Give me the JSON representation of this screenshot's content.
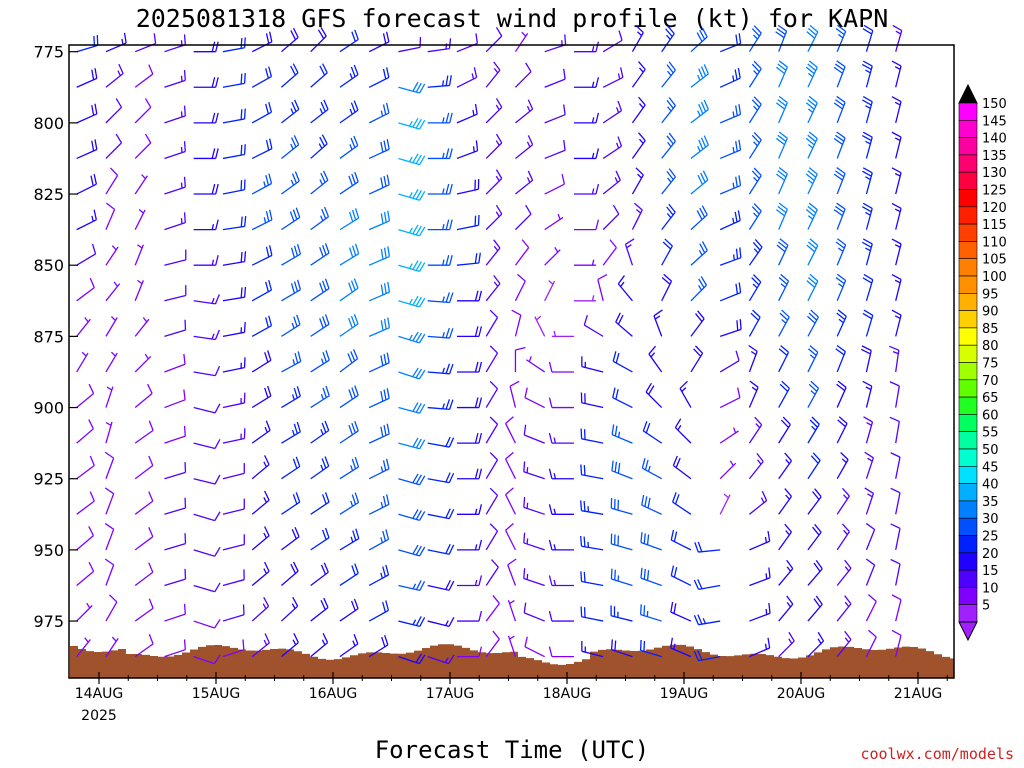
{
  "chart_data": {
    "type": "wind_barbs",
    "title": "2025081318 GFS forecast wind profile (kt) for KAPN",
    "xlabel": "Forecast Time (UTC)",
    "ylabel": "",
    "y_ticks": [
      "775",
      "800",
      "825",
      "850",
      "875",
      "900",
      "925",
      "950",
      "975"
    ],
    "y_tick_values": [
      775,
      800,
      825,
      850,
      875,
      900,
      925,
      950,
      975
    ],
    "ylim": [
      773,
      995
    ],
    "x_ticks": [
      "14AUG",
      "15AUG",
      "16AUG",
      "17AUG",
      "18AUG",
      "19AUG",
      "20AUG",
      "21AUG"
    ],
    "x_start_label": "2025",
    "colorbar_labels": [
      "150",
      "145",
      "140",
      "135",
      "130",
      "125",
      "120",
      "115",
      "110",
      "105",
      "100",
      "95",
      "90",
      "85",
      "80",
      "75",
      "70",
      "65",
      "60",
      "55",
      "50",
      "45",
      "40",
      "35",
      "30",
      "25",
      "20",
      "15",
      "10",
      "5"
    ],
    "colorbar_colors": [
      "#ff00ff",
      "#ff00d0",
      "#ff00a0",
      "#ff0070",
      "#ff0040",
      "#ff0000",
      "#ff2000",
      "#ff4000",
      "#ff6000",
      "#ff8000",
      "#ff9000",
      "#ffb000",
      "#ffd000",
      "#ffff00",
      "#d8ff00",
      "#a0ff00",
      "#60ff00",
      "#20ff20",
      "#00ff60",
      "#00ffa0",
      "#00ffd0",
      "#00e0ff",
      "#00b0ff",
      "#0080ff",
      "#0050ff",
      "#0020ff",
      "#2000ff",
      "#5000ff",
      "#8000ff",
      "#a020ff"
    ],
    "levels_hpa": [
      775,
      787.5,
      800,
      812.5,
      825,
      837.5,
      850,
      862.5,
      875,
      887.5,
      900,
      912.5,
      925,
      937.5,
      950,
      962.5,
      975,
      987.5
    ],
    "profiles": [
      {
        "time": "13/18Z",
        "u": [
          -20,
          -18,
          -18,
          -18,
          -16,
          -14,
          -10,
          -8,
          -4,
          -3,
          -6,
          -7,
          -8,
          -8,
          -7,
          -6,
          -5,
          -4
        ],
        "v": [
          -6,
          -8,
          -8,
          -8,
          -8,
          -7,
          -6,
          -6,
          -5,
          -5,
          -5,
          -6,
          -6,
          -6,
          -6,
          -5,
          -5,
          -5
        ]
      },
      {
        "time": "14/00Z",
        "u": [
          -14,
          -10,
          -8,
          -8,
          -5,
          -3,
          -4,
          -4,
          -3,
          -3,
          -2,
          -2,
          -3,
          -3,
          -3,
          -3,
          -4,
          -4
        ],
        "v": [
          -6,
          -8,
          -8,
          -8,
          -8,
          -7,
          -6,
          -5,
          -5,
          -5,
          -6,
          -7,
          -8,
          -8,
          -8,
          -8,
          -7,
          -6
        ]
      },
      {
        "time": "14/06Z",
        "u": [
          -10,
          -8,
          -6,
          -6,
          -4,
          -3,
          -2,
          -2,
          -4,
          -5,
          -6,
          -7,
          -8,
          -8,
          -8,
          -8,
          -7,
          -7
        ],
        "v": [
          -4,
          -6,
          -6,
          -6,
          -6,
          -6,
          -5,
          -5,
          -5,
          -5,
          -5,
          -5,
          -6,
          -6,
          -6,
          -6,
          -5,
          -5
        ]
      },
      {
        "time": "14/12Z",
        "u": [
          -12,
          -12,
          -12,
          -12,
          -12,
          -12,
          -12,
          -12,
          -10,
          -8,
          -8,
          -9,
          -10,
          -10,
          -10,
          -10,
          -9,
          -9
        ],
        "v": [
          -4,
          -4,
          -4,
          -4,
          -4,
          -4,
          -3,
          -3,
          -3,
          -3,
          -3,
          -3,
          -3,
          -3,
          -3,
          -3,
          -3,
          -3
        ]
      },
      {
        "time": "14/18Z",
        "u": [
          -20,
          -20,
          -20,
          -20,
          -18,
          -16,
          -14,
          -14,
          -14,
          -12,
          -12,
          -12,
          -12,
          -10,
          -10,
          -10,
          -9,
          -9
        ],
        "v": [
          0,
          0,
          0,
          0,
          0,
          0,
          0,
          2,
          2,
          2,
          3,
          3,
          3,
          3,
          3,
          3,
          3,
          3
        ]
      },
      {
        "time": "15/00Z",
        "u": [
          -22,
          -22,
          -22,
          -22,
          -20,
          -20,
          -18,
          -18,
          -16,
          -15,
          -14,
          -14,
          -12,
          -12,
          -12,
          -11,
          -10,
          -9
        ],
        "v": [
          -4,
          -4,
          -4,
          -4,
          -4,
          -3,
          -3,
          -3,
          -3,
          -3,
          -3,
          -3,
          -3,
          -3,
          -3,
          -3,
          -3,
          -3
        ]
      },
      {
        "time": "15/06Z",
        "u": [
          -16,
          -18,
          -18,
          -20,
          -22,
          -24,
          -20,
          -18,
          -18,
          -16,
          -16,
          -14,
          -12,
          -12,
          -12,
          -12,
          -10,
          -10
        ],
        "v": [
          -8,
          -10,
          -10,
          -10,
          -12,
          -12,
          -10,
          -10,
          -10,
          -10,
          -10,
          -10,
          -10,
          -10,
          -10,
          -10,
          -9,
          -8
        ]
      },
      {
        "time": "15/12Z",
        "u": [
          -14,
          -16,
          -18,
          -20,
          -22,
          -24,
          -24,
          -24,
          -22,
          -22,
          -20,
          -20,
          -18,
          -18,
          -16,
          -14,
          -12,
          -12
        ],
        "v": [
          -12,
          -14,
          -14,
          -16,
          -16,
          -16,
          -14,
          -14,
          -14,
          -12,
          -12,
          -12,
          -12,
          -12,
          -12,
          -12,
          -11,
          -10
        ]
      },
      {
        "time": "15/18Z",
        "u": [
          -14,
          -16,
          -18,
          -18,
          -20,
          -22,
          -24,
          -24,
          -24,
          -22,
          -22,
          -20,
          -20,
          -18,
          -18,
          -16,
          -14,
          -12
        ],
        "v": [
          -14,
          -14,
          -14,
          -16,
          -16,
          -16,
          -16,
          -16,
          -16,
          -14,
          -14,
          -14,
          -14,
          -12,
          -12,
          -12,
          -11,
          -10
        ]
      },
      {
        "time": "16/00Z",
        "u": [
          -18,
          -20,
          -20,
          -22,
          -24,
          -26,
          -26,
          -26,
          -26,
          -24,
          -24,
          -24,
          -22,
          -22,
          -20,
          -18,
          -16,
          -14
        ],
        "v": [
          -12,
          -14,
          -14,
          -16,
          -16,
          -16,
          -16,
          -18,
          -18,
          -18,
          -16,
          -16,
          -14,
          -14,
          -12,
          -12,
          -11,
          -10
        ]
      },
      {
        "time": "16/06Z",
        "u": [
          -16,
          -20,
          -24,
          -26,
          -26,
          -28,
          -28,
          -28,
          -28,
          -26,
          -26,
          -26,
          -24,
          -24,
          -22,
          -20,
          -18,
          -16
        ],
        "v": [
          -8,
          -10,
          -12,
          -12,
          -12,
          -12,
          -12,
          -12,
          -12,
          -12,
          -12,
          -12,
          -12,
          -12,
          -12,
          -11,
          -10,
          -10
        ]
      },
      {
        "time": "16/12Z",
        "u": [
          -10,
          -30,
          -34,
          -34,
          -34,
          -34,
          -34,
          -34,
          -32,
          -30,
          -30,
          -30,
          -28,
          -28,
          -28,
          -26,
          -24,
          -18
        ],
        "v": [
          -2,
          8,
          10,
          10,
          10,
          10,
          10,
          10,
          10,
          10,
          8,
          8,
          8,
          8,
          8,
          6,
          6,
          6
        ]
      },
      {
        "time": "16/18Z",
        "u": [
          -14,
          -24,
          -26,
          -26,
          -26,
          -26,
          -26,
          -26,
          -26,
          -24,
          -24,
          -22,
          -22,
          -20,
          -20,
          -18,
          -16,
          -12
        ],
        "v": [
          -2,
          -2,
          0,
          0,
          0,
          0,
          0,
          2,
          2,
          2,
          2,
          4,
          4,
          4,
          4,
          4,
          4,
          4
        ]
      },
      {
        "time": "17/00Z",
        "u": [
          -10,
          -12,
          -14,
          -16,
          -18,
          -20,
          -20,
          -20,
          -20,
          -20,
          -18,
          -18,
          -18,
          -16,
          -16,
          -14,
          -12,
          -10
        ],
        "v": [
          -4,
          -6,
          -6,
          -6,
          -4,
          -4,
          -2,
          0,
          0,
          0,
          0,
          0,
          0,
          0,
          0,
          0,
          0,
          0
        ]
      },
      {
        "time": "17/06Z",
        "u": [
          -8,
          -8,
          -10,
          -10,
          -10,
          -10,
          -8,
          -8,
          -6,
          -6,
          -6,
          -6,
          -6,
          -6,
          -6,
          -6,
          -6,
          -6
        ],
        "v": [
          -8,
          -10,
          -10,
          -10,
          -10,
          -10,
          -10,
          -10,
          -10,
          -10,
          -10,
          -10,
          -10,
          -10,
          -10,
          -9,
          -8,
          -8
        ]
      },
      {
        "time": "17/12Z",
        "u": [
          -4,
          -8,
          -10,
          -10,
          -10,
          -8,
          -6,
          -4,
          -2,
          0,
          2,
          4,
          4,
          4,
          4,
          3,
          2,
          2
        ],
        "v": [
          -6,
          -8,
          -8,
          -8,
          -8,
          -8,
          -8,
          -8,
          -8,
          -8,
          -8,
          -8,
          -8,
          -8,
          -8,
          -8,
          -6,
          -6
        ]
      },
      {
        "time": "17/18Z",
        "u": [
          -12,
          -10,
          -10,
          -10,
          -8,
          -6,
          -4,
          -2,
          2,
          6,
          8,
          10,
          12,
          12,
          12,
          12,
          10,
          8
        ],
        "v": [
          -4,
          -4,
          -4,
          -4,
          -4,
          -4,
          -4,
          -4,
          -4,
          -4,
          -4,
          -4,
          -4,
          -4,
          -4,
          -4,
          -4,
          -4
        ]
      },
      {
        "time": "18/00Z",
        "u": [
          -14,
          -16,
          -16,
          -16,
          -14,
          -10,
          -6,
          -4,
          4,
          8,
          10,
          14,
          16,
          16,
          16,
          14,
          12,
          10
        ],
        "v": [
          0,
          0,
          0,
          0,
          0,
          0,
          0,
          0,
          0,
          0,
          0,
          0,
          0,
          0,
          0,
          0,
          0,
          0
        ]
      },
      {
        "time": "18/06Z",
        "u": [
          -10,
          -12,
          -12,
          -12,
          -10,
          -8,
          -6,
          2,
          10,
          16,
          18,
          20,
          22,
          24,
          24,
          22,
          20,
          16
        ],
        "v": [
          -6,
          -6,
          -8,
          -8,
          -8,
          -8,
          -8,
          -8,
          -6,
          -4,
          -4,
          -4,
          -4,
          -4,
          -4,
          -4,
          -4,
          -4
        ]
      },
      {
        "time": "18/12Z",
        "u": [
          -8,
          -10,
          -10,
          -10,
          -8,
          -6,
          4,
          10,
          14,
          18,
          20,
          24,
          26,
          28,
          28,
          26,
          24,
          18
        ],
        "v": [
          -14,
          -14,
          -14,
          -14,
          -14,
          -12,
          -12,
          -12,
          -12,
          -10,
          -10,
          -10,
          -10,
          -8,
          -8,
          -8,
          -6,
          -6
        ]
      },
      {
        "time": "18/18Z",
        "u": [
          -14,
          -16,
          -16,
          -16,
          -16,
          -14,
          -10,
          -8,
          6,
          10,
          14,
          18,
          22,
          26,
          28,
          28,
          26,
          20
        ],
        "v": [
          -20,
          -20,
          -20,
          -20,
          -20,
          -18,
          -18,
          -16,
          -16,
          -14,
          -14,
          -12,
          -12,
          -12,
          -10,
          -10,
          -8,
          -6
        ]
      },
      {
        "time": "19/00Z",
        "u": [
          -22,
          -26,
          -26,
          -26,
          -24,
          -22,
          -20,
          -18,
          -12,
          -10,
          8,
          12,
          16,
          18,
          20,
          20,
          18,
          14
        ],
        "v": [
          -20,
          -20,
          -20,
          -20,
          -20,
          -20,
          -18,
          -18,
          -16,
          -16,
          -14,
          -12,
          -12,
          -12,
          -10,
          -10,
          -8,
          -6
        ]
      },
      {
        "time": "19/06Z",
        "u": [
          -20,
          -22,
          -24,
          -24,
          -24,
          -22,
          -22,
          -20,
          -18,
          -10,
          -8,
          -6,
          -4,
          -2,
          20,
          22,
          24,
          22
        ],
        "v": [
          -8,
          -10,
          -10,
          -10,
          -10,
          -10,
          -8,
          -8,
          -6,
          -6,
          -4,
          -4,
          -4,
          -4,
          2,
          4,
          4,
          4
        ]
      },
      {
        "time": "19/12Z",
        "u": [
          -14,
          -14,
          -14,
          -14,
          -14,
          -14,
          -14,
          -12,
          -10,
          -6,
          -6,
          -8,
          -8,
          -10,
          -14,
          -16,
          -16,
          -14
        ],
        "v": [
          -22,
          -22,
          -22,
          -22,
          -22,
          -22,
          -20,
          -20,
          -18,
          -16,
          -14,
          -12,
          -10,
          -8,
          -6,
          -6,
          -6,
          -6
        ]
      },
      {
        "time": "19/18Z",
        "u": [
          -10,
          -12,
          -12,
          -12,
          -12,
          -12,
          -12,
          -12,
          -12,
          -10,
          -10,
          -10,
          -10,
          -10,
          -10,
          -10,
          -10,
          -10
        ],
        "v": [
          -26,
          -28,
          -28,
          -28,
          -28,
          -28,
          -26,
          -24,
          -22,
          -20,
          -18,
          -16,
          -14,
          -14,
          -14,
          -12,
          -12,
          -10
        ]
      },
      {
        "time": "20/00Z",
        "u": [
          -14,
          -14,
          -14,
          -14,
          -14,
          -14,
          -14,
          -14,
          -14,
          -12,
          -12,
          -12,
          -12,
          -12,
          -12,
          -12,
          -12,
          -12
        ],
        "v": [
          -28,
          -30,
          -30,
          -30,
          -30,
          -30,
          -28,
          -28,
          -26,
          -24,
          -22,
          -20,
          -18,
          -16,
          -16,
          -14,
          -14,
          -12
        ]
      },
      {
        "time": "20/06Z",
        "u": [
          -10,
          -10,
          -10,
          -10,
          -10,
          -10,
          -10,
          -10,
          -10,
          -8,
          -8,
          -8,
          -8,
          -8,
          -8,
          -8,
          -8,
          -8
        ],
        "v": [
          -24,
          -26,
          -26,
          -26,
          -26,
          -26,
          -24,
          -24,
          -22,
          -20,
          -18,
          -16,
          -14,
          -12,
          -12,
          -10,
          -10,
          -10
        ]
      },
      {
        "time": "20/12Z",
        "u": [
          -6,
          -6,
          -6,
          -6,
          -6,
          -6,
          -6,
          -6,
          -6,
          -4,
          -4,
          -4,
          -4,
          -4,
          -4,
          -4,
          -4,
          -4
        ],
        "v": [
          -20,
          -22,
          -22,
          -22,
          -22,
          -22,
          -22,
          -20,
          -20,
          -18,
          -16,
          -14,
          -12,
          -12,
          -10,
          -10,
          -8,
          -8
        ]
      },
      {
        "time": "20/18Z",
        "u": [
          -4,
          -4,
          -4,
          -4,
          -4,
          -4,
          -4,
          -4,
          -4,
          -2,
          -2,
          -2,
          -2,
          -2,
          -2,
          -2,
          -2,
          -2
        ],
        "v": [
          -14,
          -16,
          -16,
          -16,
          -16,
          -16,
          -16,
          -16,
          -16,
          -14,
          -12,
          -12,
          -10,
          -10,
          -10,
          -10,
          -8,
          -8
        ]
      }
    ]
  },
  "credit": "coolwx.com/models",
  "colors": {
    "terrain": "#a0522d",
    "frame": "#000000",
    "above_top": "#000000",
    "below_bottom": "#a020ff"
  }
}
